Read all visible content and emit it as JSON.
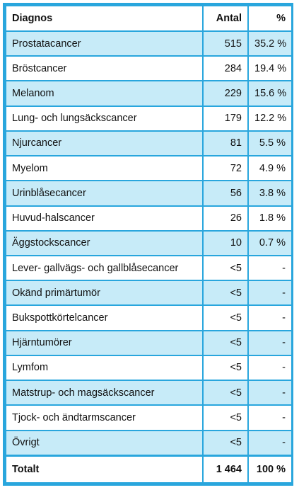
{
  "header": {
    "diagnos": "Diagnos",
    "antal": "Antal",
    "percent": "%"
  },
  "rows": [
    {
      "diagnos": "Prostatacancer",
      "antal": "515",
      "percent": "35.2 %"
    },
    {
      "diagnos": "Bröstcancer",
      "antal": "284",
      "percent": "19.4 %"
    },
    {
      "diagnos": "Melanom",
      "antal": "229",
      "percent": "15.6 %"
    },
    {
      "diagnos": "Lung- och lungsäckscancer",
      "antal": "179",
      "percent": "12.2 %"
    },
    {
      "diagnos": "Njurcancer",
      "antal": "81",
      "percent": "5.5 %"
    },
    {
      "diagnos": "Myelom",
      "antal": "72",
      "percent": "4.9 %"
    },
    {
      "diagnos": "Urinblåsecancer",
      "antal": "56",
      "percent": "3.8 %"
    },
    {
      "diagnos": "Huvud-halscancer",
      "antal": "26",
      "percent": "1.8 %"
    },
    {
      "diagnos": "Äggstockscancer",
      "antal": "10",
      "percent": "0.7 %"
    },
    {
      "diagnos": "Lever- gallvägs- och gallblåsecancer",
      "antal": "<5",
      "percent": "-"
    },
    {
      "diagnos": "Okänd primärtumör",
      "antal": "<5",
      "percent": "-"
    },
    {
      "diagnos": "Bukspottkörtelcancer",
      "antal": "<5",
      "percent": "-"
    },
    {
      "diagnos": "Hjärntumörer",
      "antal": "<5",
      "percent": "-"
    },
    {
      "diagnos": "Lymfom",
      "antal": "<5",
      "percent": "-"
    },
    {
      "diagnos": "Matstrup- och magsäckscancer",
      "antal": "<5",
      "percent": "-"
    },
    {
      "diagnos": "Tjock- och ändtarmscancer",
      "antal": "<5",
      "percent": "-"
    },
    {
      "diagnos": "Övrigt",
      "antal": "<5",
      "percent": "-"
    }
  ],
  "total": {
    "label": "Totalt",
    "antal": "1 464",
    "percent": "100 %"
  },
  "colors": {
    "border": "#29a6dd",
    "shaded_row": "#c7ebf8"
  }
}
